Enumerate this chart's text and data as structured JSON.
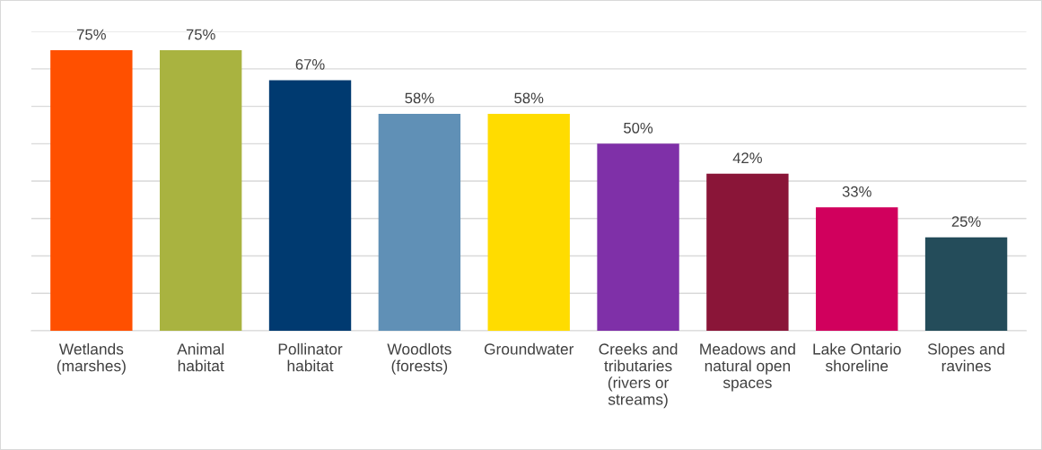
{
  "chart_data": {
    "type": "bar",
    "categories": [
      "Wetlands\n(marshes)",
      "Animal\nhabitat",
      "Pollinator\nhabitat",
      "Woodlots\n(forests)",
      "Groundwater",
      "Creeks and\ntributaries\n(rivers or\nstreams)",
      "Meadows and\nnatural open\nspaces",
      "Lake Ontario\nshoreline",
      "Slopes and\nravines"
    ],
    "values": [
      75,
      75,
      67,
      58,
      58,
      50,
      42,
      33,
      25
    ],
    "colors": [
      "#ff5000",
      "#a9b340",
      "#003a70",
      "#6090b6",
      "#ffdc00",
      "#7f30a8",
      "#8a1538",
      "#d1005d",
      "#244c5a"
    ],
    "value_labels": [
      "75%",
      "75%",
      "67%",
      "58%",
      "58%",
      "50%",
      "42%",
      "33%",
      "25%"
    ],
    "ylim": [
      0,
      80
    ],
    "yticks": [
      {
        "value": 0,
        "label": null
      },
      {
        "value": 10,
        "label": null
      },
      {
        "value": 20,
        "label": null
      },
      {
        "value": 30,
        "label": null
      },
      {
        "value": 40,
        "label": null
      },
      {
        "value": 50,
        "label": null
      },
      {
        "value": 60,
        "label": null
      },
      {
        "value": 70,
        "label": null
      },
      {
        "value": 80,
        "label": null
      }
    ],
    "grid": "y",
    "tick_labels": "x",
    "legend": false
  }
}
